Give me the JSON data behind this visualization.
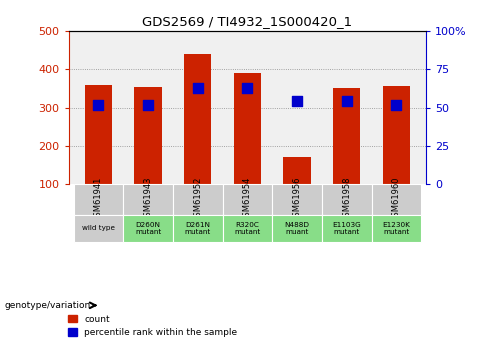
{
  "title": "GDS2569 / TI4932_1S000420_1",
  "samples": [
    "GSM61941",
    "GSM61943",
    "GSM61952",
    "GSM61954",
    "GSM61956",
    "GSM61958",
    "GSM61960"
  ],
  "genotype_labels": [
    "wild type",
    "D260N\nmutant",
    "D261N\nmutant",
    "R320C\nmutant",
    "N488D\nmuant",
    "E1103G\nmutant",
    "E1230K\nmutant"
  ],
  "count_values": [
    358,
    355,
    440,
    390,
    172,
    350,
    357
  ],
  "percentile_values": [
    308,
    308,
    350,
    350,
    318,
    318,
    308
  ],
  "bar_color": "#cc2200",
  "pct_color": "#0000cc",
  "ylim_left": [
    100,
    500
  ],
  "ylim_right": [
    0,
    100
  ],
  "yticks_left": [
    100,
    200,
    300,
    400,
    500
  ],
  "yticks_right": [
    0,
    25,
    50,
    75,
    100
  ],
  "ytick_labels_right": [
    "0",
    "25",
    "50",
    "75",
    "100%"
  ],
  "bar_width": 0.55,
  "grid_color": "#888888",
  "bg_plot": "#f0f0f0",
  "bg_sample_row": "#cccccc",
  "bg_wildtype": "#cccccc",
  "bg_mutant": "#88dd88",
  "left_color": "#cc2200",
  "right_color": "#0000cc"
}
